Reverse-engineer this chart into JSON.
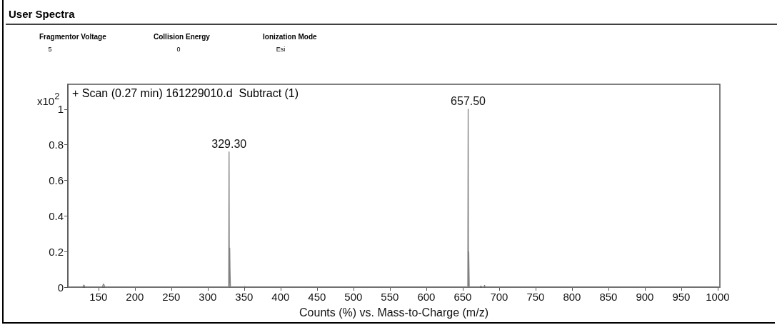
{
  "chart_data": {
    "type": "line",
    "title": "User Spectra",
    "xlabel": "Counts (%) vs. Mass-to-Charge (m/z)",
    "ylabel": "x10$^{2}$",
    "annotations": [
      "Fragmentor Voltage",
      "5",
      "Collision Energy",
      "0",
      "Ionization Mode",
      "Esi",
      "+ Scan (0.27 min) 161229010.d  Subtract (1)",
      {
        "text": "329.30",
        "x": 329.3,
        "y": 0.76
      },
      {
        "text": "657.50",
        "x": 657.5,
        "y": 1.0
      }
    ],
    "series": [
      {
        "color": "#808080",
        "x": [
          108,
          128,
          130,
          132,
          155,
          157,
          159,
          328.8,
          329.3,
          329.7,
          330.2,
          330.6,
          331.2,
          350,
          351,
          352,
          657,
          657.5,
          657.9,
          658.3,
          659,
          673,
          675,
          677,
          679,
          680,
          681,
          1003
        ],
        "values": [
          0,
          0,
          0.012,
          0,
          0,
          0.018,
          0,
          0,
          0.76,
          0,
          0.22,
          0.1,
          0,
          0,
          0.004,
          0,
          0,
          1.0,
          0,
          0.2,
          0,
          0,
          0.006,
          0,
          0,
          0.01,
          0,
          0
        ]
      }
    ],
    "xlim": [
      108,
      1003
    ],
    "xticks": [
      150,
      200,
      250,
      300,
      350,
      400,
      450,
      500,
      550,
      600,
      650,
      700,
      750,
      800,
      850,
      900,
      950,
      1000
    ],
    "ylim": [
      0,
      1.14
    ],
    "yticks": [
      0,
      0.2,
      0.4,
      0.6,
      0.8,
      1
    ],
    "grid": false,
    "marker": "none",
    "line_style": "solid"
  }
}
